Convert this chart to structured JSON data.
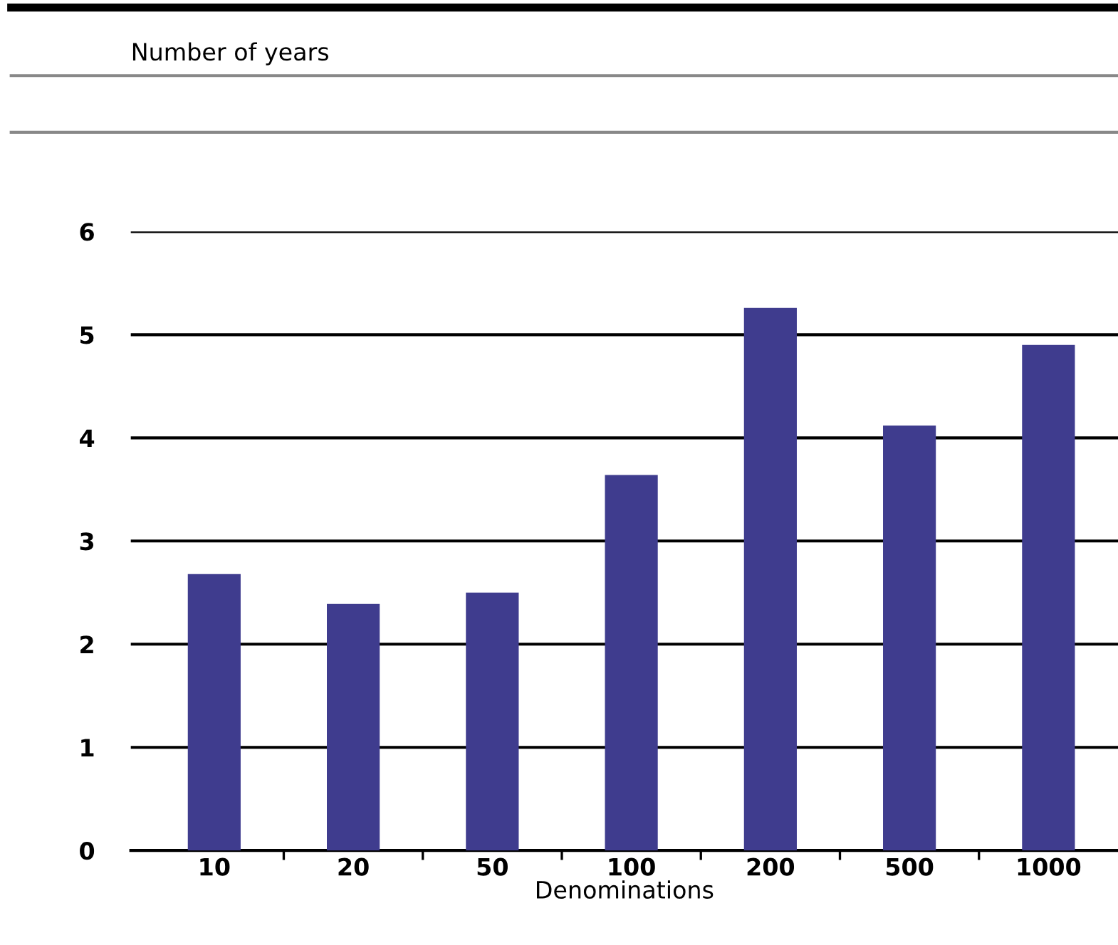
{
  "chart_data": {
    "type": "bar",
    "annotations": [
      "Number of years"
    ],
    "xlabel": "Denominations",
    "categories": [
      "10",
      "20",
      "50",
      "100",
      "200",
      "500",
      "1000"
    ],
    "values": [
      2.68,
      2.39,
      2.5,
      3.64,
      5.26,
      4.12,
      4.9
    ],
    "color": "#3f3c8e",
    "ylim": [
      0,
      6
    ],
    "yticks": [
      0,
      1,
      2,
      3,
      4,
      5,
      6
    ],
    "grid": "y"
  }
}
